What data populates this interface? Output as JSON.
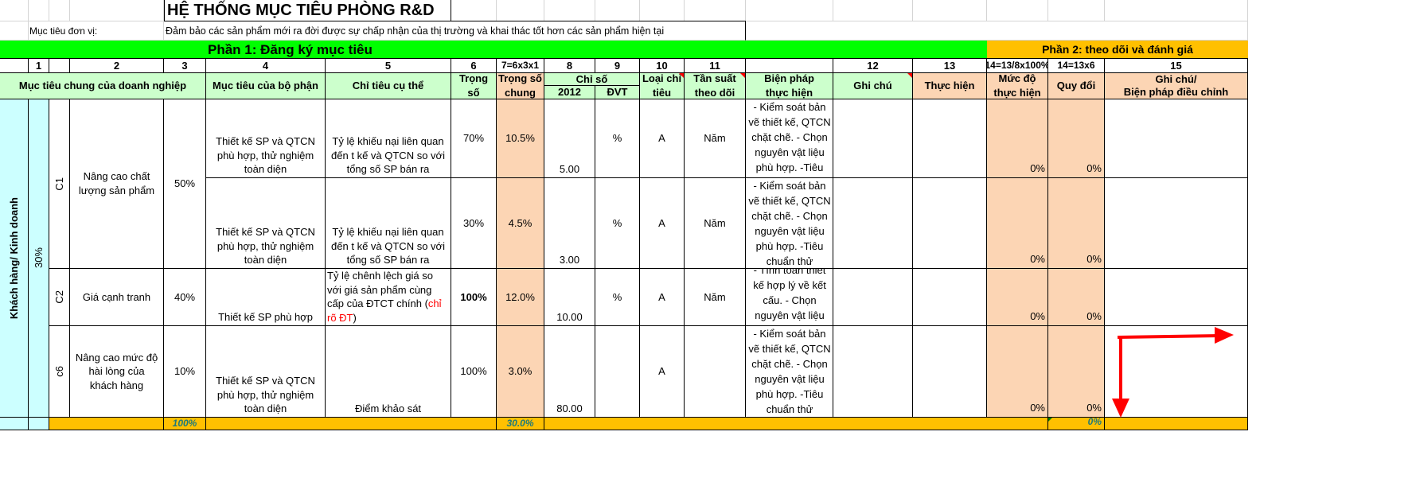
{
  "sheet": {
    "title": "HỆ THỐNG MỤC TIÊU PHÒNG R&D",
    "unit_goal_label": "Mục tiêu đơn vị:",
    "unit_goal_text": "Đảm bảo  các sản phẩm mới ra đời được sự chấp nhận của thị trường và khai thác tốt hơn các sản phẩm hiện tại",
    "part1": "Phần 1: Đăng ký mục tiêu",
    "part2": "Phần 2: theo dõi và đánh giá",
    "col_numbers": [
      "1",
      "2",
      "3",
      "4",
      "5",
      "6",
      "7=6x3x1",
      "8",
      "9",
      "10",
      "11",
      "12",
      "13",
      "14=13/8x100%",
      "14=13x6",
      "15"
    ],
    "headers": {
      "muc_tieu_chung": "Mục tiêu chung của doanh nghiệp",
      "muc_tieu_bo_phan": "Mục tiêu của bộ phận",
      "chi_tieu": "Chỉ tiêu cụ thể",
      "trong_so": "Trọng số",
      "trong_so_chung": "Trọng số chung",
      "chi_so": "Chỉ số",
      "nam": "2012",
      "dvt": "ĐVT",
      "loai_chi_tieu": "Loại chỉ tiêu",
      "tan_suat": "Tần suất theo dõi",
      "bien_phap": "Biện pháp thực hiện",
      "ghi_chu": "Ghi chú",
      "thuc_hien": "Thực hiện",
      "muc_do": "Mức độ thực hiện",
      "quy_doi": "Quy đổi",
      "ghi_chu_15": "Ghi chú/\nBiện pháp điều chỉnh"
    },
    "group": {
      "label": "Khách hàng/ Kinh doanh",
      "weight": "30%"
    },
    "sections": [
      {
        "code": "C1",
        "name": "Nâng cao chất lượng sản phẩm",
        "weight": "50%"
      },
      {
        "code": "C2",
        "name": "Giá cạnh tranh",
        "weight": "40%"
      },
      {
        "code": "c6",
        "name": "Nâng cao mức độ hài lòng của khách hàng",
        "weight": "10%"
      }
    ],
    "rows": [
      {
        "muc_tieu_bo_phan": "Thiết kế SP và QTCN phù hợp, thử nghiệm toàn diện",
        "chi_tieu": "Tỷ lệ khiếu nại liên quan đến t kế và QTCN so với tổng số SP bán ra",
        "trong_so": "70%",
        "trong_so_chung": "10.5%",
        "chi_so_2012": "5.00",
        "dvt": "%",
        "loai": "A",
        "tan_suat": "Năm",
        "bien_phap": "- Kiểm soát bản vẽ thiết kế, QTCN chặt chẽ. - Chọn nguyên vật liệu phù hợp. -Tiêu chuẩn thử nghiệm",
        "muc_do": "0%",
        "quy_doi": "0%"
      },
      {
        "muc_tieu_bo_phan": "Thiết kế SP và QTCN phù hợp, thử nghiệm toàn diện",
        "chi_tieu": "Tỷ lệ khiếu nại liên quan đến t kế và QTCN so với tổng số SP bán ra",
        "trong_so": "30%",
        "trong_so_chung": "4.5%",
        "chi_so_2012": "3.00",
        "dvt": "%",
        "loai": "A",
        "tan_suat": "Năm",
        "bien_phap": "- Kiểm soát bản vẽ thiết kế, QTCN chặt chẽ. - Chọn nguyên vật liệu phù hợp. -Tiêu chuẩn thử nghiệm phù hợp",
        "muc_do": "0%",
        "quy_doi": "0%"
      },
      {
        "muc_tieu_bo_phan": "Thiết kế SP phù hợp",
        "chi_tieu_a": "Tỷ lệ chênh lệch giá so với giá  sản phẩm cùng cấp của ĐTCT chính (",
        "chi_tieu_red": "chỉ rõ ĐT",
        "chi_tieu_b": ")",
        "trong_so": "100%",
        "trong_so_chung": "12.0%",
        "chi_so_2012": "10.00",
        "dvt": "%",
        "loai": "A",
        "tan_suat": "Năm",
        "bien_phap": "- Tính toán thiết kế hợp lý về kết cấu. - Chọn nguyên vật liệu có giá phù hợp",
        "muc_do": "0%",
        "quy_doi": "0%"
      },
      {
        "muc_tieu_bo_phan": "Thiết kế SP và QTCN phù hợp, thử nghiệm toàn diện",
        "chi_tieu": "Điểm khảo sát",
        "trong_so": "100%",
        "trong_so_chung": "3.0%",
        "chi_so_2012": "80.00",
        "dvt": "",
        "loai": "A",
        "tan_suat": "",
        "bien_phap": "- Kiểm soát bản vẽ thiết kế, QTCN chặt chẽ. - Chọn nguyên vật liệu phù hợp. -Tiêu chuẩn thử nghiệm phù hợp",
        "muc_do": "0%",
        "quy_doi": "0%"
      }
    ],
    "totals": {
      "trong_so": "100%",
      "trong_so_chung": "30.0%",
      "quy_doi": "0%"
    },
    "colors": {
      "mint": "#ccffcc",
      "peach": "#fcd5b4",
      "green": "#00ff00",
      "orange": "#ffc000",
      "cyan": "#ccffff",
      "arrow": "#ff0000"
    }
  }
}
